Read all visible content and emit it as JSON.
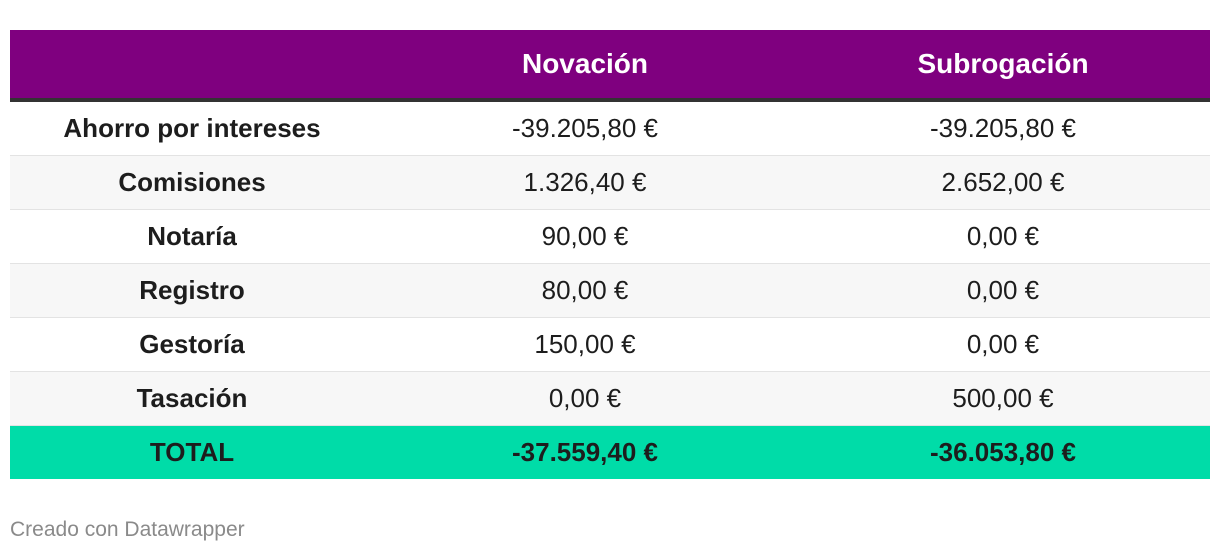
{
  "chart_data": {
    "type": "table",
    "columns": [
      "",
      "Novación",
      "Subrogación"
    ],
    "rows": [
      {
        "label": "Ahorro por intereses",
        "novacion": "-39.205,80 €",
        "subrogacion": "-39.205,80 €"
      },
      {
        "label": "Comisiones",
        "novacion": "1.326,40 €",
        "subrogacion": "2.652,00 €"
      },
      {
        "label": "Notaría",
        "novacion": "90,00 €",
        "subrogacion": "0,00 €"
      },
      {
        "label": "Registro",
        "novacion": "80,00 €",
        "subrogacion": "0,00 €"
      },
      {
        "label": "Gestoría",
        "novacion": "150,00 €",
        "subrogacion": "0,00 €"
      },
      {
        "label": "Tasación",
        "novacion": "0,00 €",
        "subrogacion": "500,00 €"
      }
    ],
    "total": {
      "label": "TOTAL",
      "novacion": "-37.559,40 €",
      "subrogacion": "-36.053,80 €"
    },
    "colors": {
      "header": "#7f007f",
      "total": "#00dca8",
      "header_rule": "#333333"
    }
  },
  "footer": {
    "credit": "Creado con Datawrapper"
  }
}
